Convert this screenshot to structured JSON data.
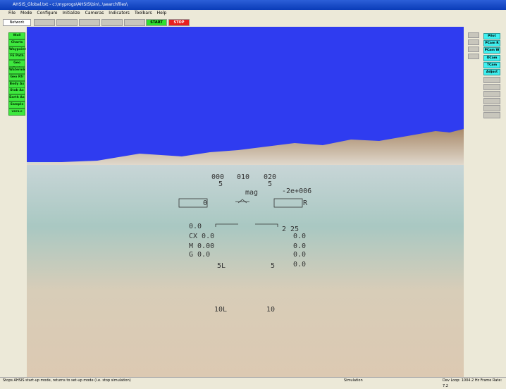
{
  "window": {
    "title": "AHSIS_Global.txt - c:\\myprogs\\AHSIS\\bin\\..\\searchfiles\\"
  },
  "menu": [
    "File",
    "Mode",
    "Configure",
    "Initialize",
    "Cameras",
    "Indicators",
    "Toolbars",
    "Help"
  ],
  "toolbar": {
    "tab": "Network",
    "start": "START",
    "stop": "STOP"
  },
  "left_buttons": [
    "Wall",
    "Charts",
    "Waypoint",
    "FE Path",
    "Geo Path",
    "Watermk",
    "Geo Rfr",
    "Body Ax",
    "Stab Ax",
    "Earth Ax",
    "Sample",
    "vers.c"
  ],
  "right_buttons": [
    "Pilot",
    "PCam R",
    "PCam W",
    "OCam",
    "TCam",
    "Adjust"
  ],
  "hud": {
    "heading": [
      "000",
      "010",
      "020"
    ],
    "heading_sub": [
      "5",
      "5"
    ],
    "mag": "mag",
    "readout": "-2e+006",
    "left_box": "0",
    "right_box": "R",
    "rows_left": [
      "0.0",
      "CX  0.0",
      "M  0.00",
      "G  0.0"
    ],
    "rows_right": [
      "2 25",
      "0.0",
      "0.0",
      "0.0"
    ],
    "pitch_5": [
      "5L",
      "5"
    ],
    "pitch_10": [
      "10L",
      "10"
    ],
    "bottom_right": "0.0"
  },
  "status": {
    "message": "Stops AHSIS start-up mode, returns to set-up mode (i.e. stop simulation)",
    "mode": "Simulation",
    "rates": "Dev Loop: 1004.2 Hz  Frame Rate: 7.2"
  }
}
